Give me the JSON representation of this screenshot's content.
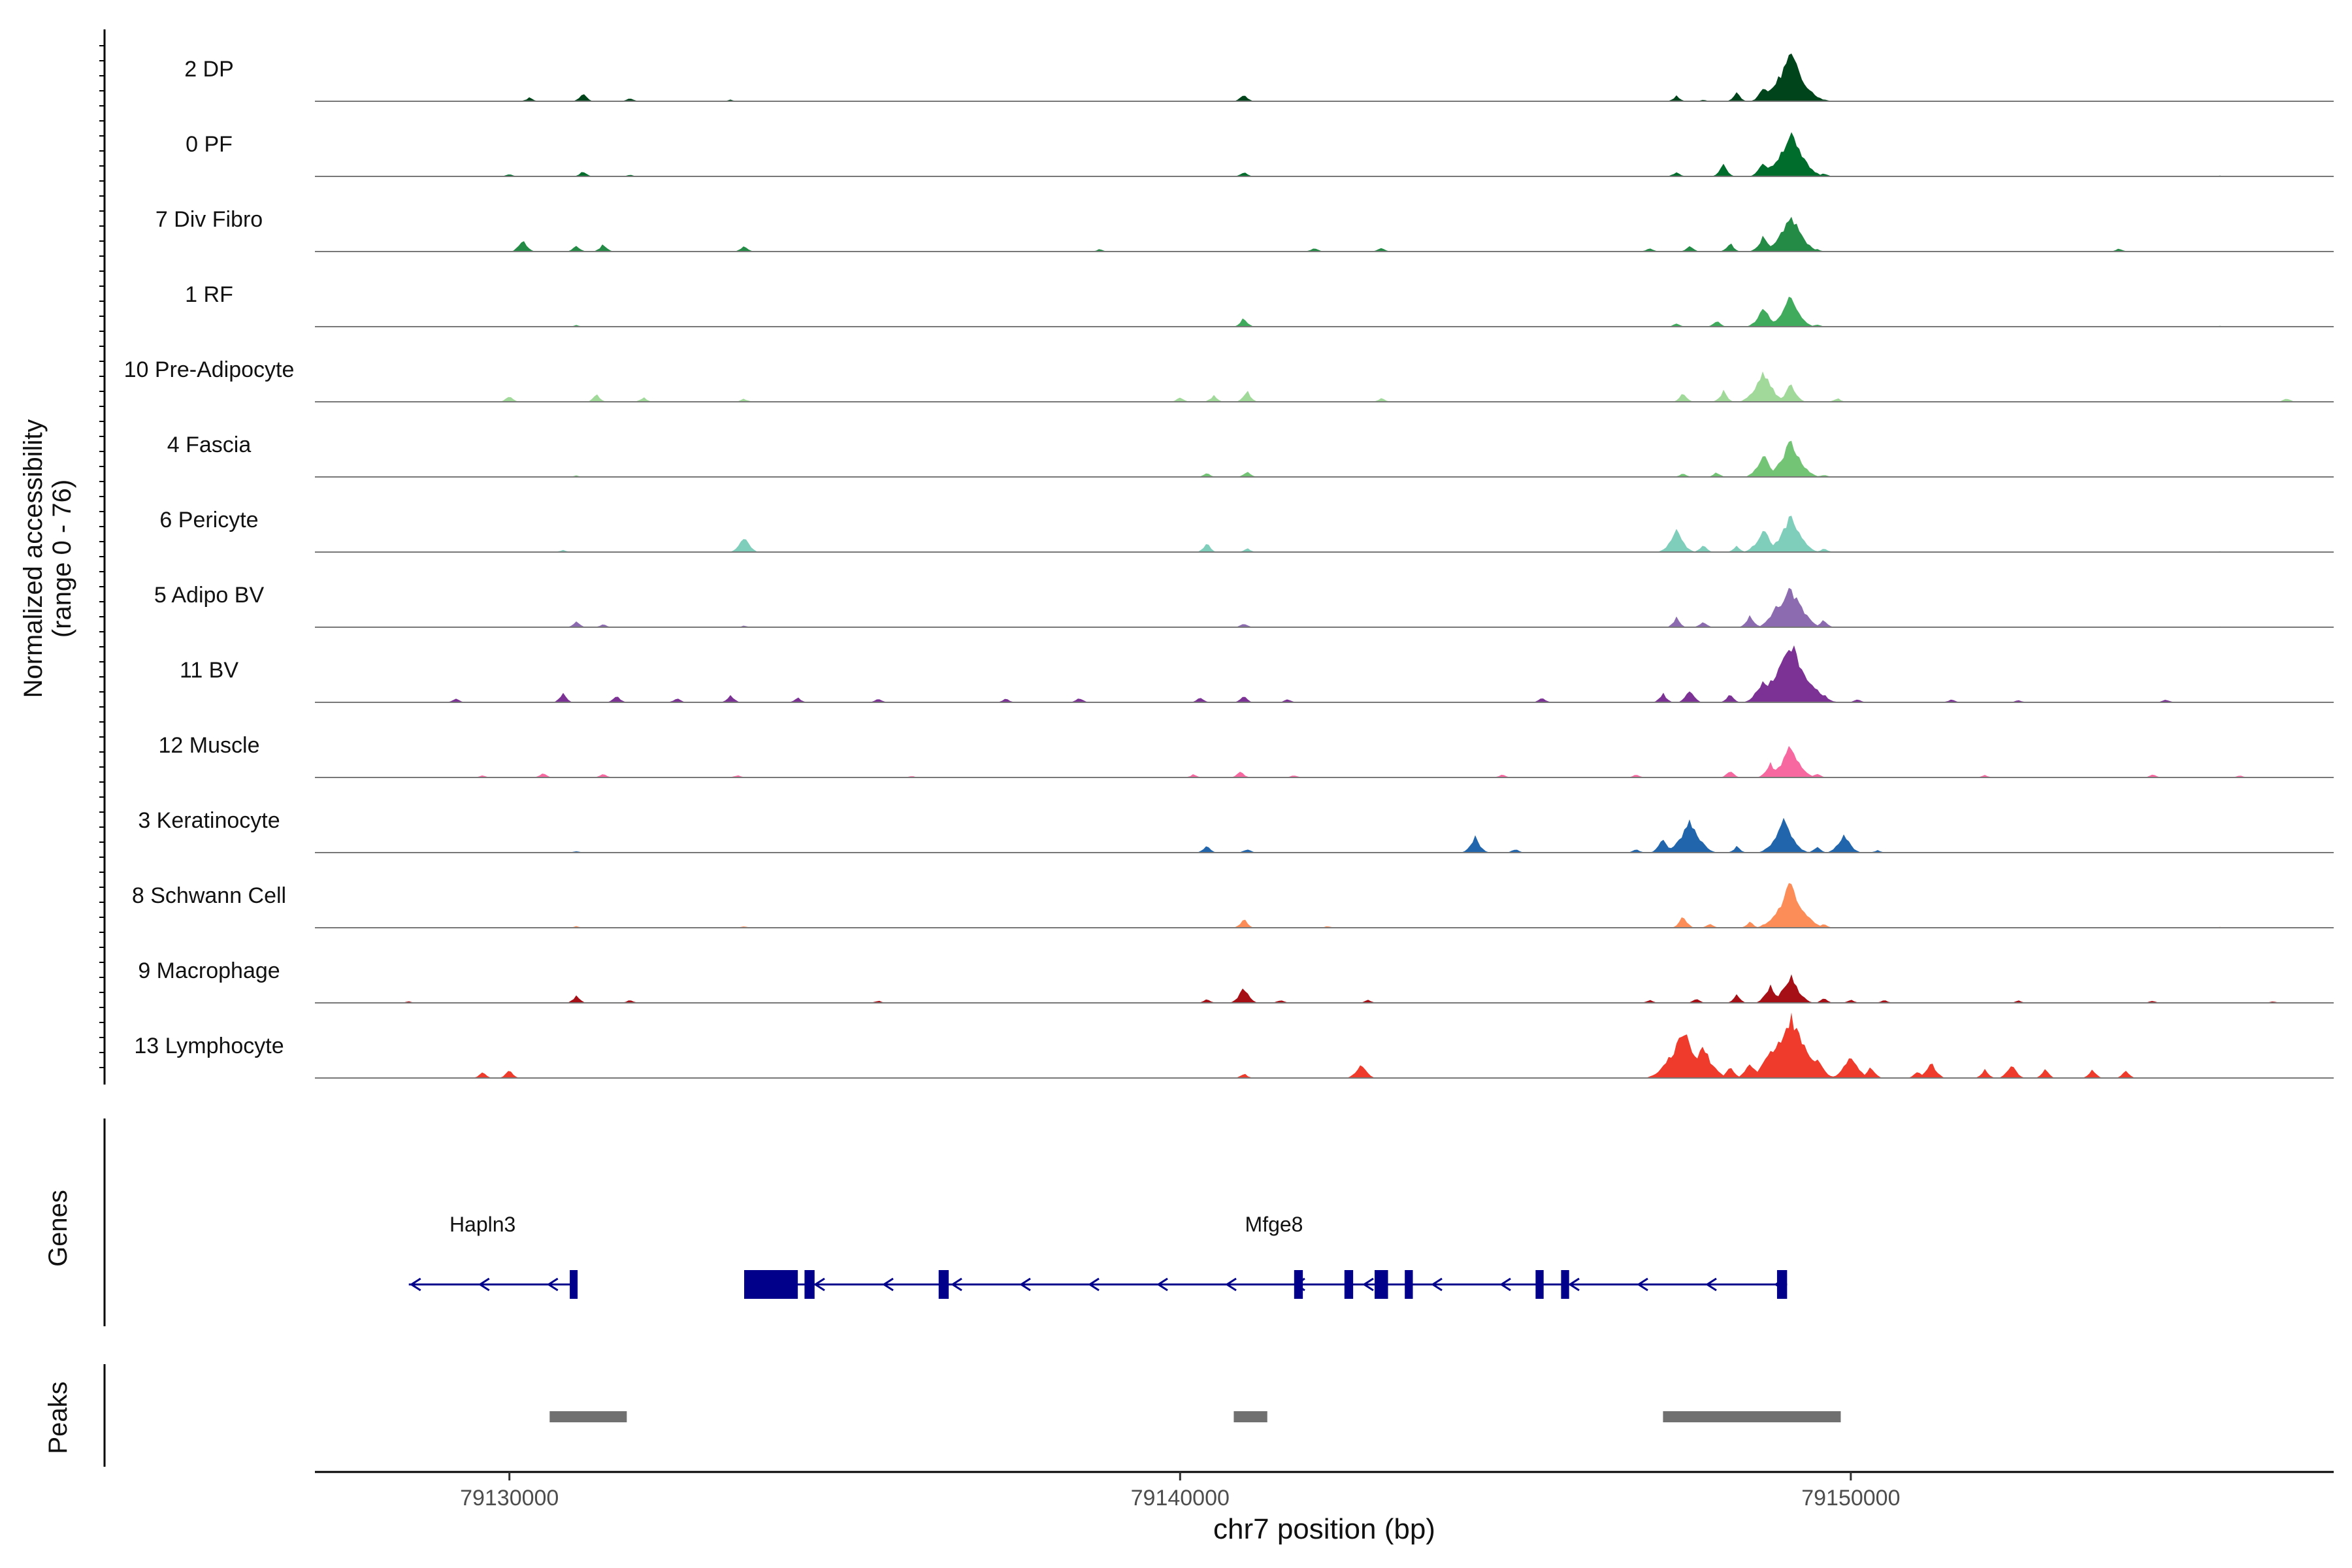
{
  "chart_data": {
    "type": "area",
    "ylabel_line1": "Normalized accessibility",
    "ylabel_line2": "(range 0 - 76)",
    "ylim": [
      0,
      76
    ],
    "xlabel": "chr7 position (bp)",
    "xlim": [
      79127100,
      79157200
    ],
    "xticks": [
      79130000,
      79140000,
      79150000
    ],
    "xtick_labels": [
      "79130000",
      "79140000",
      "79150000"
    ],
    "series": [
      {
        "name": "2 DP",
        "color": "#00441b",
        "points": [
          [
            79128500,
            0
          ],
          [
            79130300,
            5
          ],
          [
            79131100,
            12
          ],
          [
            79131800,
            4
          ],
          [
            79133300,
            2
          ],
          [
            79140950,
            10
          ],
          [
            79147400,
            7
          ],
          [
            79147800,
            2
          ],
          [
            79148300,
            12
          ],
          [
            79148700,
            18
          ],
          [
            79149100,
            60
          ],
          [
            79149600,
            3
          ],
          [
            79155500,
            1
          ]
        ]
      },
      {
        "name": "0 PF",
        "color": "#006d2c",
        "points": [
          [
            79128500,
            0
          ],
          [
            79130000,
            3
          ],
          [
            79131100,
            7
          ],
          [
            79131800,
            2
          ],
          [
            79140950,
            6
          ],
          [
            79147400,
            6
          ],
          [
            79148100,
            15
          ],
          [
            79148700,
            20
          ],
          [
            79149100,
            55
          ],
          [
            79149600,
            4
          ],
          [
            79155500,
            1
          ]
        ]
      },
      {
        "name": "7 Div Fibro",
        "color": "#238b45",
        "points": [
          [
            79128500,
            0
          ],
          [
            79130200,
            16
          ],
          [
            79131000,
            8
          ],
          [
            79131400,
            10
          ],
          [
            79133500,
            8
          ],
          [
            79138800,
            3
          ],
          [
            79142000,
            5
          ],
          [
            79143000,
            5
          ],
          [
            79147000,
            5
          ],
          [
            79147600,
            8
          ],
          [
            79148200,
            12
          ],
          [
            79148700,
            20
          ],
          [
            79149100,
            48
          ],
          [
            79149500,
            3
          ],
          [
            79154000,
            4
          ]
        ]
      },
      {
        "name": "1 RF",
        "color": "#41ab5d",
        "points": [
          [
            79128500,
            0
          ],
          [
            79131000,
            2
          ],
          [
            79140950,
            12
          ],
          [
            79147400,
            4
          ],
          [
            79148000,
            8
          ],
          [
            79148700,
            25
          ],
          [
            79149100,
            38
          ],
          [
            79149500,
            3
          ],
          [
            79155500,
            1
          ]
        ]
      },
      {
        "name": "10 Pre-Adipocyte",
        "color": "#a1d99b",
        "points": [
          [
            79130000,
            8
          ],
          [
            79131300,
            10
          ],
          [
            79132000,
            6
          ],
          [
            79133500,
            4
          ],
          [
            79140000,
            6
          ],
          [
            79140500,
            8
          ],
          [
            79141000,
            14
          ],
          [
            79143000,
            5
          ],
          [
            79147500,
            12
          ],
          [
            79148100,
            14
          ],
          [
            79148700,
            38
          ],
          [
            79149100,
            22
          ],
          [
            79149800,
            5
          ],
          [
            79156500,
            5
          ]
        ]
      },
      {
        "name": "4 Fascia",
        "color": "#74c476",
        "points": [
          [
            79128500,
            0
          ],
          [
            79131000,
            2
          ],
          [
            79140400,
            5
          ],
          [
            79141000,
            8
          ],
          [
            79147500,
            5
          ],
          [
            79148000,
            6
          ],
          [
            79148700,
            28
          ],
          [
            79149100,
            46
          ],
          [
            79149600,
            3
          ],
          [
            79155500,
            1
          ]
        ]
      },
      {
        "name": "6 Pericyte",
        "color": "#7fcdbb",
        "points": [
          [
            79128500,
            0
          ],
          [
            79130800,
            3
          ],
          [
            79133500,
            20
          ],
          [
            79140400,
            12
          ],
          [
            79141000,
            5
          ],
          [
            79147400,
            28
          ],
          [
            79147800,
            10
          ],
          [
            79148300,
            8
          ],
          [
            79148700,
            30
          ],
          [
            79149100,
            45
          ],
          [
            79149600,
            5
          ],
          [
            79155500,
            1
          ]
        ]
      },
      {
        "name": "5 Adipo BV",
        "color": "#8c6bb1",
        "points": [
          [
            79128500,
            0
          ],
          [
            79131000,
            7
          ],
          [
            79131400,
            4
          ],
          [
            79133500,
            2
          ],
          [
            79140950,
            5
          ],
          [
            79147400,
            12
          ],
          [
            79147800,
            8
          ],
          [
            79148500,
            15
          ],
          [
            79148900,
            30
          ],
          [
            79149100,
            52
          ],
          [
            79149600,
            10
          ],
          [
            79155500,
            1
          ]
        ]
      },
      {
        "name": "11 BV",
        "color": "#7b3294",
        "points": [
          [
            79129200,
            5
          ],
          [
            79130800,
            12
          ],
          [
            79131600,
            9
          ],
          [
            79132500,
            6
          ],
          [
            79133300,
            10
          ],
          [
            79134300,
            6
          ],
          [
            79135500,
            5
          ],
          [
            79137400,
            5
          ],
          [
            79138500,
            6
          ],
          [
            79140300,
            7
          ],
          [
            79140950,
            8
          ],
          [
            79141600,
            4
          ],
          [
            79145400,
            6
          ],
          [
            79147200,
            12
          ],
          [
            79147600,
            16
          ],
          [
            79148200,
            12
          ],
          [
            79148700,
            30
          ],
          [
            79149100,
            76
          ],
          [
            79149600,
            12
          ],
          [
            79150100,
            4
          ],
          [
            79151500,
            4
          ],
          [
            79152500,
            3
          ],
          [
            79154700,
            4
          ]
        ]
      },
      {
        "name": "12 Muscle",
        "color": "#f768a1",
        "points": [
          [
            79129600,
            3
          ],
          [
            79130500,
            6
          ],
          [
            79131400,
            5
          ],
          [
            79133400,
            3
          ],
          [
            79136000,
            2
          ],
          [
            79140200,
            4
          ],
          [
            79140900,
            8
          ],
          [
            79141700,
            3
          ],
          [
            79144800,
            4
          ],
          [
            79146800,
            4
          ],
          [
            79148200,
            10
          ],
          [
            79148800,
            18
          ],
          [
            79149100,
            40
          ],
          [
            79149500,
            5
          ],
          [
            79152000,
            3
          ],
          [
            79154500,
            4
          ],
          [
            79155800,
            3
          ]
        ]
      },
      {
        "name": "3 Keratinocyte",
        "color": "#2166ac",
        "points": [
          [
            79129500,
            0
          ],
          [
            79131000,
            2
          ],
          [
            79140400,
            10
          ],
          [
            79141000,
            5
          ],
          [
            79144400,
            20
          ],
          [
            79145000,
            5
          ],
          [
            79146800,
            5
          ],
          [
            79147200,
            18
          ],
          [
            79147600,
            42
          ],
          [
            79148300,
            8
          ],
          [
            79149000,
            40
          ],
          [
            79149500,
            8
          ],
          [
            79149900,
            25
          ],
          [
            79150400,
            3
          ],
          [
            79155500,
            1
          ]
        ]
      },
      {
        "name": "8 Schwann Cell",
        "color": "#fc8d59",
        "points": [
          [
            79129500,
            0
          ],
          [
            79131000,
            2
          ],
          [
            79133500,
            2
          ],
          [
            79140950,
            12
          ],
          [
            79142200,
            2
          ],
          [
            79147500,
            15
          ],
          [
            79147900,
            5
          ],
          [
            79148500,
            8
          ],
          [
            79148900,
            20
          ],
          [
            79149100,
            55
          ],
          [
            79149600,
            5
          ],
          [
            79155500,
            1
          ]
        ]
      },
      {
        "name": "9 Macrophage",
        "color": "#a50f15",
        "points": [
          [
            79128500,
            2
          ],
          [
            79131000,
            10
          ],
          [
            79131800,
            4
          ],
          [
            79135500,
            3
          ],
          [
            79140400,
            5
          ],
          [
            79140950,
            20
          ],
          [
            79141500,
            4
          ],
          [
            79142800,
            4
          ],
          [
            79147000,
            4
          ],
          [
            79147700,
            6
          ],
          [
            79148300,
            10
          ],
          [
            79148800,
            22
          ],
          [
            79149100,
            35
          ],
          [
            79149600,
            6
          ],
          [
            79150000,
            4
          ],
          [
            79150500,
            4
          ],
          [
            79152500,
            3
          ],
          [
            79154500,
            3
          ],
          [
            79156300,
            2
          ]
        ]
      },
      {
        "name": "13 Lymphocyte",
        "color": "#ef3b2c",
        "points": [
          [
            79129600,
            8
          ],
          [
            79130000,
            12
          ],
          [
            79140950,
            6
          ],
          [
            79142700,
            20
          ],
          [
            79147500,
            60
          ],
          [
            79147800,
            40
          ],
          [
            79148200,
            15
          ],
          [
            79148500,
            20
          ],
          [
            79148800,
            35
          ],
          [
            79149100,
            76
          ],
          [
            79149500,
            25
          ],
          [
            79150000,
            30
          ],
          [
            79150300,
            15
          ],
          [
            79151000,
            10
          ],
          [
            79151200,
            20
          ],
          [
            79152000,
            12
          ],
          [
            79152400,
            18
          ],
          [
            79152900,
            12
          ],
          [
            79153600,
            12
          ],
          [
            79154100,
            10
          ]
        ]
      }
    ],
    "genes_label": "Genes",
    "genes": [
      {
        "name": "Hapln3",
        "start": 79128500,
        "end": 79131000,
        "strand": "-",
        "label_pos": 79129600,
        "exons": [
          [
            79130900,
            79131000
          ]
        ]
      },
      {
        "name": "Mfge8",
        "start": 79133500,
        "end": 79149050,
        "strand": "-",
        "label_pos": 79141400,
        "exons": [
          [
            79133500,
            79134300
          ],
          [
            79134400,
            79134550
          ],
          [
            79136400,
            79136550
          ],
          [
            79141700,
            79141830
          ],
          [
            79142450,
            79142580
          ],
          [
            79142900,
            79143100
          ],
          [
            79143350,
            79143470
          ],
          [
            79145300,
            79145420
          ],
          [
            79145680,
            79145800
          ],
          [
            79148900,
            79149050
          ]
        ]
      }
    ],
    "peaks_label": "Peaks",
    "peaks": [
      [
        79130600,
        79131750
      ],
      [
        79140800,
        79141300
      ],
      [
        79147200,
        79149850
      ]
    ]
  }
}
